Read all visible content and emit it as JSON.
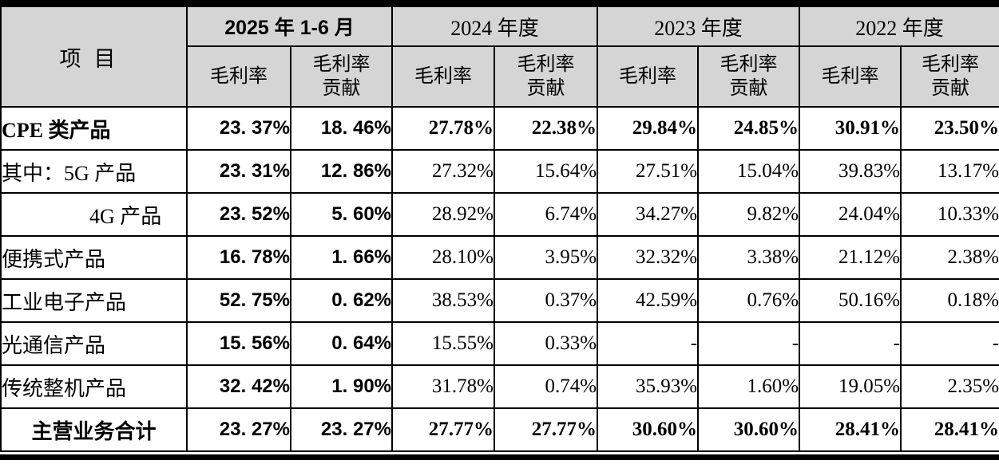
{
  "table": {
    "corner_header": "项目",
    "period_groups": [
      {
        "label": "2025 年 1-6 月"
      },
      {
        "label": "2024 年度"
      },
      {
        "label": "2023 年度"
      },
      {
        "label": "2022 年度"
      }
    ],
    "sub_headers": {
      "gross_margin": "毛利率",
      "gross_margin_contribution": "毛利率\n贡献"
    },
    "rows": [
      {
        "label": "CPE 类产品",
        "bold": true,
        "indent": false,
        "center": false,
        "values": [
          "23. 37%",
          "18. 46%",
          "27.78%",
          "22.38%",
          "29.84%",
          "24.85%",
          "30.91%",
          "23.50%"
        ]
      },
      {
        "label": "其中：5G 产品",
        "bold": false,
        "indent": false,
        "center": false,
        "values": [
          "23. 31%",
          "12. 86%",
          "27.32%",
          "15.64%",
          "27.51%",
          "15.04%",
          "39.83%",
          "13.17%"
        ]
      },
      {
        "label": "4G 产品",
        "bold": false,
        "indent": true,
        "center": false,
        "values": [
          "23. 52%",
          "5. 60%",
          "28.92%",
          "6.74%",
          "34.27%",
          "9.82%",
          "24.04%",
          "10.33%"
        ]
      },
      {
        "label": "便携式产品",
        "bold": false,
        "indent": false,
        "center": false,
        "values": [
          "16. 78%",
          "1. 66%",
          "28.10%",
          "3.95%",
          "32.32%",
          "3.38%",
          "21.12%",
          "2.38%"
        ]
      },
      {
        "label": "工业电子产品",
        "bold": false,
        "indent": false,
        "center": false,
        "values": [
          "52. 75%",
          "0. 62%",
          "38.53%",
          "0.37%",
          "42.59%",
          "0.76%",
          "50.16%",
          "0.18%"
        ]
      },
      {
        "label": "光通信产品",
        "bold": false,
        "indent": false,
        "center": false,
        "values": [
          "15. 56%",
          "0. 64%",
          "15.55%",
          "0.33%",
          "-",
          "-",
          "-",
          "-"
        ]
      },
      {
        "label": "传统整机产品",
        "bold": false,
        "indent": false,
        "center": false,
        "values": [
          "32. 42%",
          "1. 90%",
          "31.78%",
          "0.74%",
          "35.93%",
          "1.60%",
          "19.05%",
          "2.35%"
        ]
      },
      {
        "label": "主营业务合计",
        "bold": true,
        "indent": false,
        "center": true,
        "values": [
          "23. 27%",
          "23. 27%",
          "27.77%",
          "27.77%",
          "30.60%",
          "30.60%",
          "28.41%",
          "28.41%"
        ]
      }
    ]
  }
}
